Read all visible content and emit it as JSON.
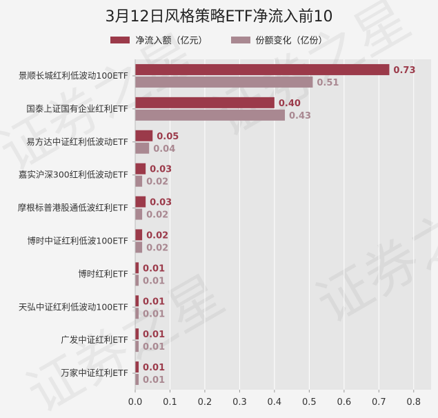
{
  "chart_data": {
    "type": "bar",
    "orientation": "horizontal",
    "title": "3月12日风格策略ETF净流入前10",
    "categories": [
      "景顺长城红利低波动100ETF",
      "国泰上证国有企业红利ETF",
      "易方达中证红利低波动ETF",
      "嘉实沪深300红利低波动ETF",
      "摩根标普港股通低波红利ETF",
      "博时中证红利低波100ETF",
      "博时红利ETF",
      "天弘中证红利低波动100ETF",
      "广发中证红利ETF",
      "万家中证红利ETF"
    ],
    "series": [
      {
        "name": "净流入额（亿元）",
        "color": "#9b3a4a",
        "values": [
          0.73,
          0.4,
          0.05,
          0.03,
          0.03,
          0.02,
          0.01,
          0.01,
          0.01,
          0.01
        ],
        "labels": [
          "0.73",
          "0.40",
          "0.05",
          "0.03",
          "0.03",
          "0.02",
          "0.01",
          "0.01",
          "0.01",
          "0.01"
        ]
      },
      {
        "name": "份额变化（亿份）",
        "color": "#a98891",
        "values": [
          0.51,
          0.43,
          0.04,
          0.02,
          0.02,
          0.02,
          0.01,
          0.01,
          0.01,
          0.01
        ],
        "labels": [
          "0.51",
          "0.43",
          "0.04",
          "0.02",
          "0.02",
          "0.02",
          "0.01",
          "0.01",
          "0.01",
          "0.01"
        ]
      }
    ],
    "xlim": [
      0,
      0.85
    ],
    "xticks": [
      "0.0",
      "0.1",
      "0.2",
      "0.3",
      "0.4",
      "0.5",
      "0.6",
      "0.7",
      "0.8"
    ],
    "xtick_values": [
      0,
      0.1,
      0.2,
      0.3,
      0.4,
      0.5,
      0.6,
      0.7,
      0.8
    ],
    "grid": true,
    "legend": "top-center",
    "plot_background": "#e6e6e6",
    "watermark": "证券之星"
  }
}
